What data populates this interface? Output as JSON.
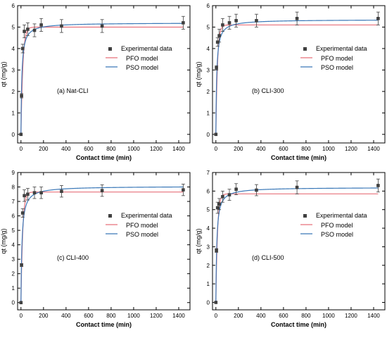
{
  "chart_data": [
    {
      "type": "scatter",
      "title": "",
      "annotation": "(a) Nat-CLI",
      "xlabel": "Contact time (min)",
      "ylabel": "qt (mg/g)",
      "xlim": [
        -30,
        1500
      ],
      "ylim": [
        -0.4,
        6
      ],
      "xticks": [
        0,
        200,
        400,
        600,
        800,
        1000,
        1200,
        1400
      ],
      "yticks": [
        0,
        1,
        2,
        3,
        4,
        5,
        6
      ],
      "legend_position": "center-right",
      "experimental": {
        "name": "Experimental data",
        "x": [
          0,
          5,
          15,
          30,
          60,
          120,
          180,
          360,
          720,
          1440
        ],
        "y": [
          0,
          1.8,
          4.0,
          4.8,
          4.9,
          4.85,
          5.1,
          5.05,
          5.05,
          5.2
        ],
        "err": [
          0,
          0.1,
          0.2,
          0.3,
          0.3,
          0.3,
          0.3,
          0.3,
          0.3,
          0.3
        ]
      },
      "series": [
        {
          "name": "PFO model",
          "qe": 5.0,
          "k": 0.06,
          "model": "pfo"
        },
        {
          "name": "PSO model",
          "qe": 5.2,
          "k": 0.025,
          "model": "pso"
        }
      ],
      "grid": false
    },
    {
      "type": "scatter",
      "title": "",
      "annotation": "(b) CLI-300",
      "xlabel": "Contact time (min)",
      "ylabel": "qt (mg/g)",
      "xlim": [
        -30,
        1500
      ],
      "ylim": [
        -0.4,
        6
      ],
      "xticks": [
        0,
        200,
        400,
        600,
        800,
        1000,
        1200,
        1400
      ],
      "yticks": [
        0,
        1,
        2,
        3,
        4,
        5,
        6
      ],
      "legend_position": "center-right",
      "experimental": {
        "name": "Experimental data",
        "x": [
          0,
          5,
          15,
          30,
          60,
          120,
          180,
          360,
          720,
          1440
        ],
        "y": [
          0,
          3.1,
          4.3,
          4.6,
          5.1,
          5.2,
          5.3,
          5.3,
          5.4,
          5.4
        ],
        "err": [
          0,
          0.1,
          0.2,
          0.3,
          0.3,
          0.3,
          0.3,
          0.3,
          0.3,
          0.3
        ]
      },
      "series": [
        {
          "name": "PFO model",
          "qe": 5.1,
          "k": 0.07,
          "model": "pfo"
        },
        {
          "name": "PSO model",
          "qe": 5.35,
          "k": 0.025,
          "model": "pso"
        }
      ],
      "grid": false
    },
    {
      "type": "scatter",
      "title": "",
      "annotation": "(c) CLI-400",
      "xlabel": "Contact time (min)",
      "ylabel": "qt (mg/g)",
      "xlim": [
        -30,
        1500
      ],
      "ylim": [
        -0.5,
        9
      ],
      "xticks": [
        0,
        200,
        400,
        600,
        800,
        1000,
        1200,
        1400
      ],
      "yticks": [
        0,
        1,
        2,
        3,
        4,
        5,
        6,
        7,
        8,
        9
      ],
      "legend_position": "center-right",
      "experimental": {
        "name": "Experimental data",
        "x": [
          0,
          5,
          15,
          30,
          60,
          120,
          180,
          360,
          720,
          1440
        ],
        "y": [
          0,
          2.6,
          6.2,
          7.4,
          7.5,
          7.6,
          7.6,
          7.7,
          7.75,
          7.8
        ],
        "err": [
          0,
          0.1,
          0.3,
          0.4,
          0.4,
          0.4,
          0.4,
          0.4,
          0.4,
          0.4
        ]
      },
      "series": [
        {
          "name": "PFO model",
          "qe": 7.65,
          "k": 0.065,
          "model": "pfo"
        },
        {
          "name": "PSO model",
          "qe": 8.05,
          "k": 0.014,
          "model": "pso"
        }
      ],
      "grid": false
    },
    {
      "type": "scatter",
      "title": "",
      "annotation": "(d) CLI-500",
      "xlabel": "Contact time (min)",
      "ylabel": "qt (mg/g)",
      "xlim": [
        -30,
        1500
      ],
      "ylim": [
        -0.4,
        7
      ],
      "xticks": [
        0,
        200,
        400,
        600,
        800,
        1000,
        1200,
        1400
      ],
      "yticks": [
        0,
        1,
        2,
        3,
        4,
        5,
        6,
        7
      ],
      "legend_position": "center-right",
      "experimental": {
        "name": "Experimental data",
        "x": [
          0,
          5,
          15,
          30,
          60,
          120,
          180,
          360,
          720,
          1440
        ],
        "y": [
          0,
          2.8,
          5.1,
          5.3,
          5.7,
          5.8,
          6.1,
          6.05,
          6.2,
          6.3
        ],
        "err": [
          0,
          0.1,
          0.3,
          0.3,
          0.3,
          0.3,
          0.3,
          0.3,
          0.35,
          0.35
        ]
      },
      "series": [
        {
          "name": "PFO model",
          "qe": 5.85,
          "k": 0.07,
          "model": "pfo"
        },
        {
          "name": "PSO model",
          "qe": 6.2,
          "k": 0.02,
          "model": "pso"
        }
      ],
      "grid": false
    }
  ],
  "colors": {
    "experimental": "#404040",
    "pfo": "#e8707a",
    "pso": "#3a78b8",
    "axis": "#000000"
  }
}
